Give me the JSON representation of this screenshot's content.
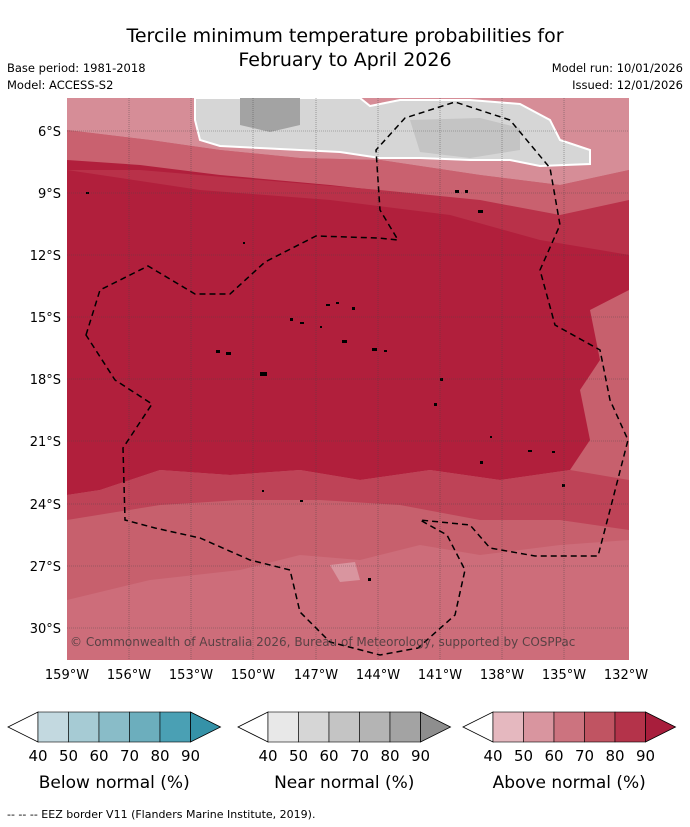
{
  "title_line1": "Tercile minimum temperature probabilities for",
  "title_line2": "February to April 2026",
  "base_period": "Base period: 1981-2018",
  "model": "Model: ACCESS-S2",
  "model_run": "Model run: 10/01/2026",
  "issued": "Issued: 12/01/2026",
  "credit": "© Commonwealth of Australia 2026, Bureau of Meteorology, supported by COSPPac",
  "lat_labels": [
    "6°S",
    "9°S",
    "12°S",
    "15°S",
    "18°S",
    "21°S",
    "24°S",
    "27°S",
    "30°S"
  ],
  "lon_labels": [
    "159°W",
    "156°W",
    "153°W",
    "150°W",
    "147°W",
    "144°W",
    "141°W",
    "138°W",
    "135°W",
    "132°W"
  ],
  "legend": [
    {
      "name": "Below normal (%)",
      "ticks": [
        "40",
        "50",
        "60",
        "70",
        "80",
        "90"
      ],
      "colors": [
        "#c3d9e0",
        "#a6cbd4",
        "#89bcc8",
        "#6caebd",
        "#4aa0b4",
        "#3592a8"
      ]
    },
    {
      "name": "Near normal (%)",
      "ticks": [
        "40",
        "50",
        "60",
        "70",
        "80",
        "90"
      ],
      "colors": [
        "#e8e8e8",
        "#d6d6d6",
        "#c4c4c4",
        "#b4b4b4",
        "#a3a3a3",
        "#8e8e8e"
      ]
    },
    {
      "name": "Above normal (%)",
      "ticks": [
        "40",
        "50",
        "60",
        "70",
        "80",
        "90"
      ],
      "colors": [
        "#e5b8bf",
        "#d9959f",
        "#cc737f",
        "#c05462",
        "#b4334a",
        "#a81e3c"
      ]
    }
  ],
  "footer": "-- -- -- EEZ border V11 (Flanders Marine Institute, 2019)."
}
